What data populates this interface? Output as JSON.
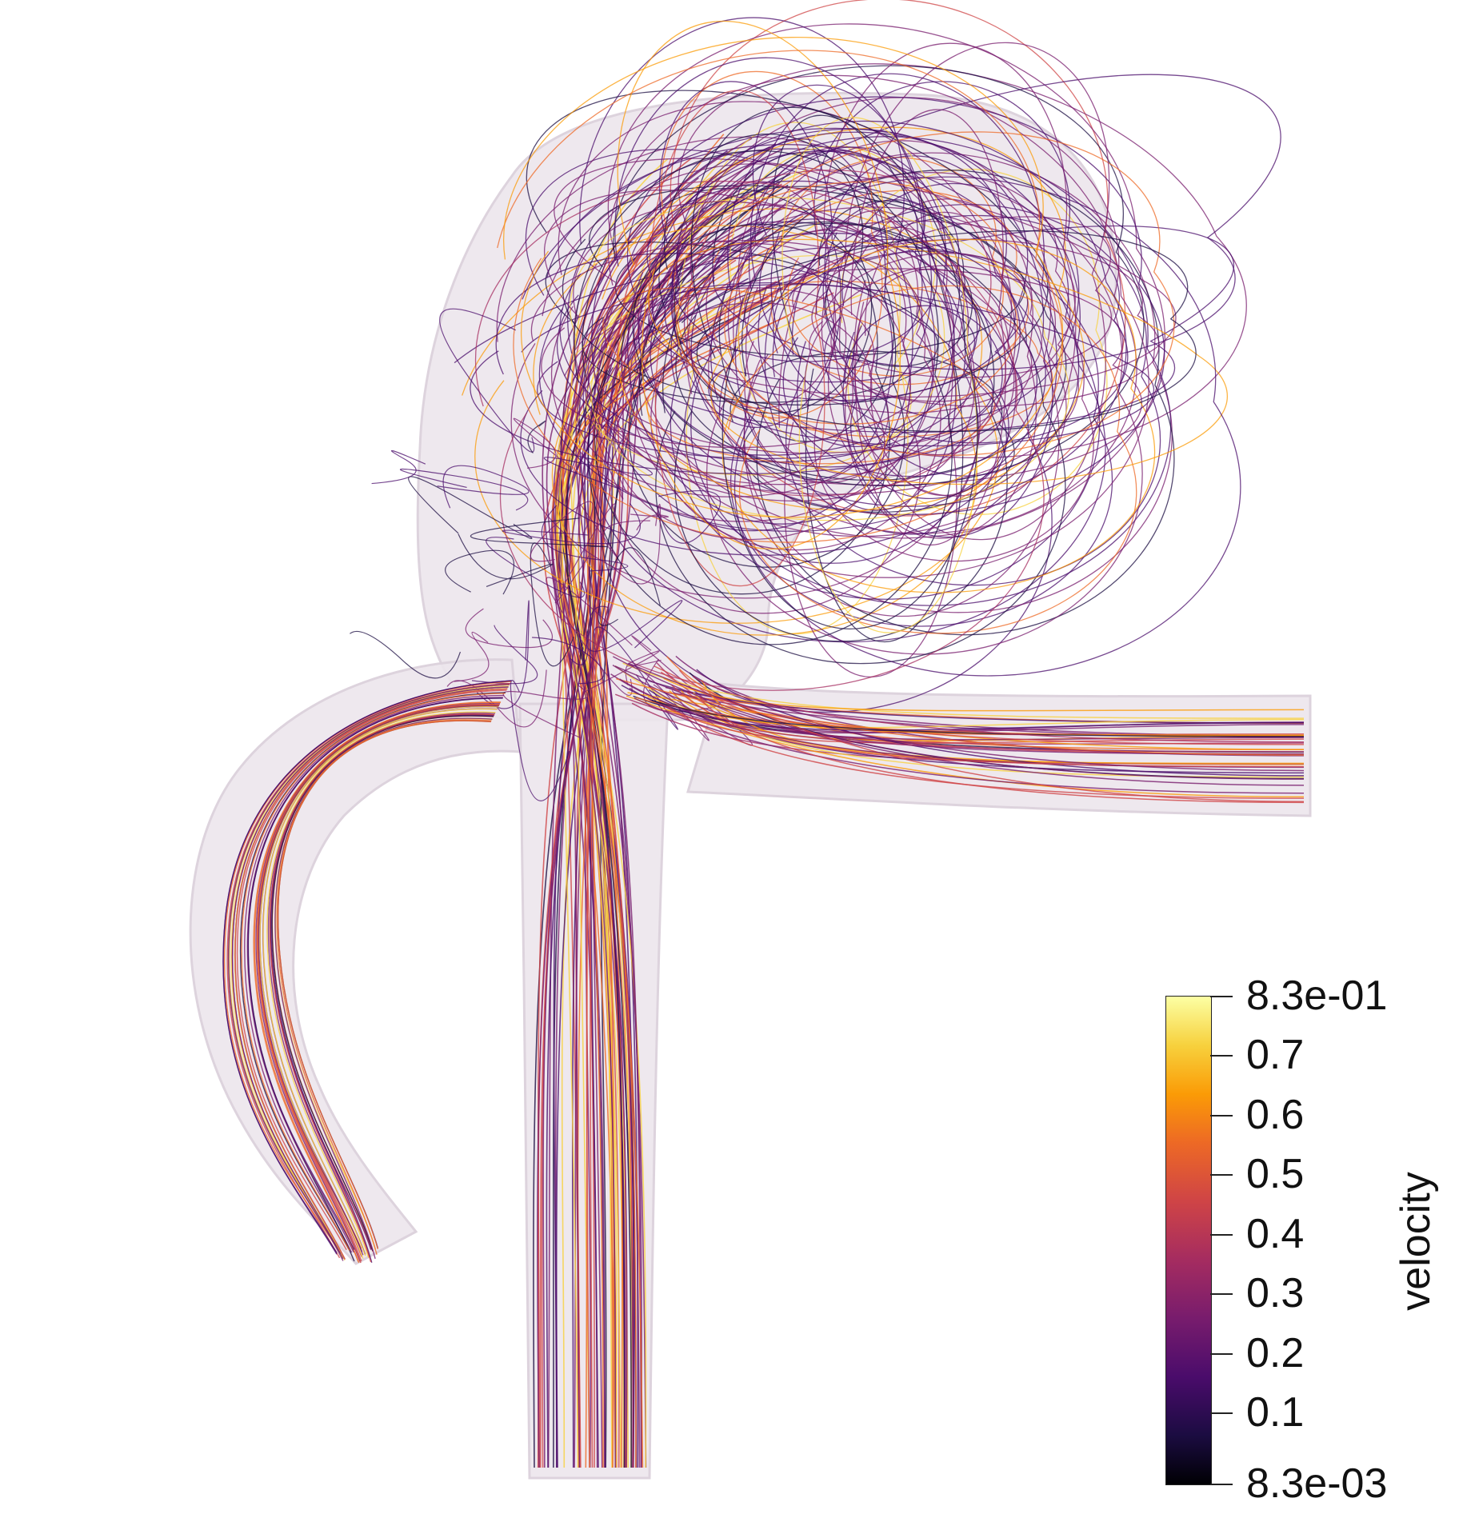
{
  "legend": {
    "title": "velocity",
    "tick_labels": [
      "8.3e-01",
      "0.7",
      "0.6",
      "0.5",
      "0.4",
      "0.3",
      "0.2",
      "0.1",
      "8.3e-03"
    ],
    "range": [
      0.0083,
      0.83
    ],
    "colormap": "inferno",
    "colors": [
      "#000004",
      "#1b0c41",
      "#4a0c6b",
      "#781c6d",
      "#a52c60",
      "#cf4446",
      "#ed6925",
      "#fb9b06",
      "#f7d13d",
      "#fcffa4"
    ]
  }
}
